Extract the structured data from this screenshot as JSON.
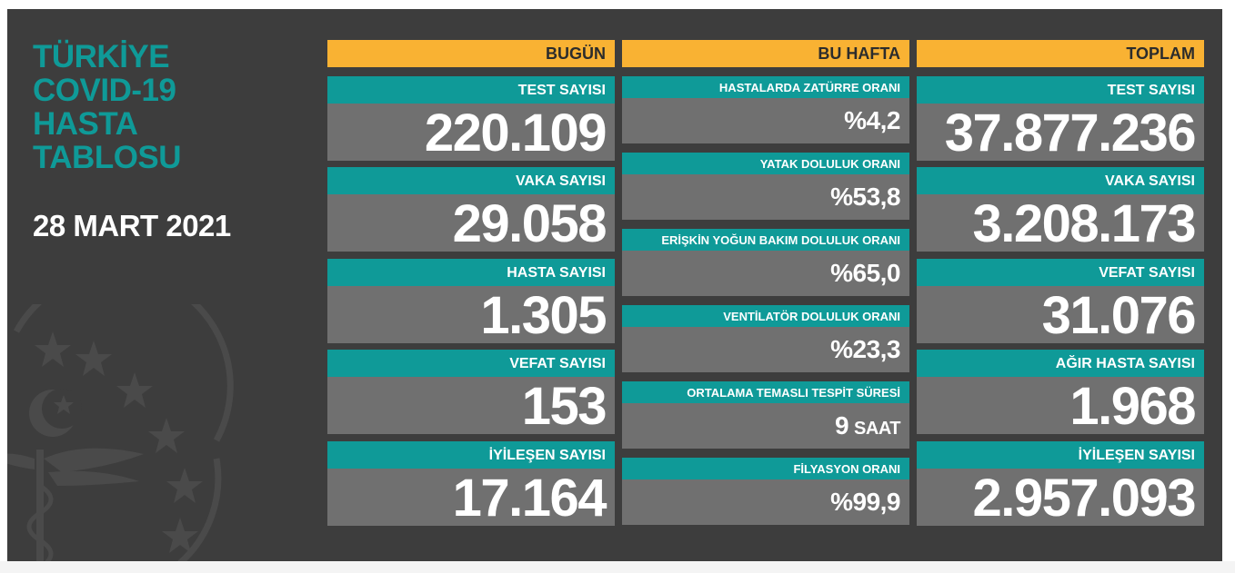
{
  "title": {
    "line1": "TÜRKİYE",
    "line2": "COVID-19",
    "line3": "HASTA",
    "line4": "TABLOSU"
  },
  "date": "28 MART 2021",
  "today": {
    "header": "BUGÜN",
    "items": [
      {
        "label": "TEST SAYISI",
        "value": "220.109"
      },
      {
        "label": "VAKA SAYISI",
        "value": "29.058"
      },
      {
        "label": "HASTA SAYISI",
        "value": "1.305"
      },
      {
        "label": "VEFAT SAYISI",
        "value": "153"
      },
      {
        "label": "İYİLEŞEN SAYISI",
        "value": "17.164"
      }
    ]
  },
  "week": {
    "header": "BU HAFTA",
    "items": [
      {
        "label": "HASTALARDA ZATÜRRE ORANI",
        "value": "%4,2"
      },
      {
        "label": "YATAK DOLULUK ORANI",
        "value": "%53,8"
      },
      {
        "label": "ERİŞKİN YOĞUN BAKIM DOLULUK ORANI",
        "value": "%65,0"
      },
      {
        "label": "VENTİLATÖR DOLULUK ORANI",
        "value": "%23,3"
      },
      {
        "label": "ORTALAMA TEMASLI TESPİT SÜRESİ",
        "value": "9",
        "unit": "SAAT"
      },
      {
        "label": "FİLYASYON ORANI",
        "value": "%99,9"
      }
    ]
  },
  "total": {
    "header": "TOPLAM",
    "items": [
      {
        "label": "TEST SAYISI",
        "value": "37.877.236"
      },
      {
        "label": "VAKA SAYISI",
        "value": "3.208.173"
      },
      {
        "label": "VEFAT SAYISI",
        "value": "31.076"
      },
      {
        "label": "AĞIR HASTA SAYISI",
        "value": "1.968"
      },
      {
        "label": "İYİLEŞEN SAYISI",
        "value": "2.957.093"
      }
    ]
  },
  "colors": {
    "panel": "#3d3d3d",
    "accent_teal": "#0f9a98",
    "header_orange": "#f9b233",
    "value_gray": "#707070",
    "text_white": "#ffffff"
  },
  "icons": {
    "emblem": "ministry-of-health-emblem-icon"
  }
}
